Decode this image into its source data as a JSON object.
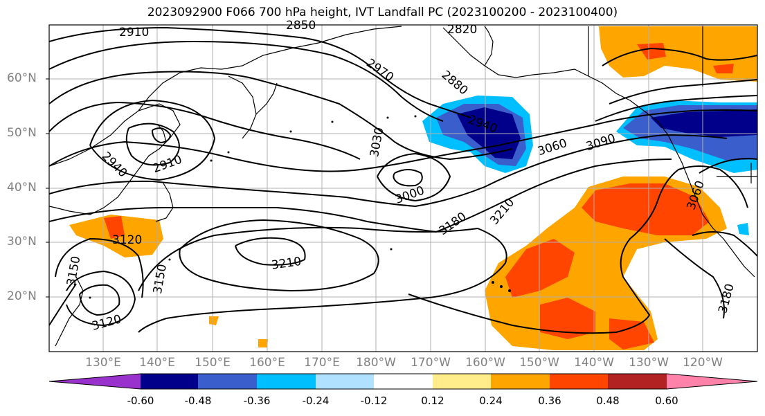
{
  "title": "2023092900 F066 700 hPa height, IVT Landfall PC (2023100200 - 2023100400)",
  "lat_labels": [
    "60°N",
    "50°N",
    "40°N",
    "30°N",
    "20°N"
  ],
  "lon_labels": [
    "130°E",
    "140°E",
    "150°E",
    "160°E",
    "170°E",
    "180°W",
    "170°W",
    "160°W",
    "150°W",
    "140°W",
    "130°W",
    "120°W"
  ],
  "contour_labels": [
    "2910",
    "2850",
    "2820",
    "2970",
    "2880",
    "3030",
    "2940",
    "3060",
    "3090",
    "3000",
    "3210",
    "3180",
    "3060",
    "2940",
    "2910",
    "3120",
    "3210",
    "3150",
    "3150",
    "3120",
    "3180"
  ],
  "colorbar": {
    "colors": [
      "#9932cc",
      "#00008b",
      "#3a5fcd",
      "#00bfff",
      "#b0e2ff",
      "#ffffff",
      "#ffec8b",
      "#ffa500",
      "#ff4500",
      "#b22222",
      "#ff82ab"
    ],
    "tick_labels": [
      "-0.60",
      "-0.48",
      "-0.36",
      "-0.24",
      "-0.12",
      "0.12",
      "0.24",
      "0.36",
      "0.48",
      "0.60"
    ]
  }
}
